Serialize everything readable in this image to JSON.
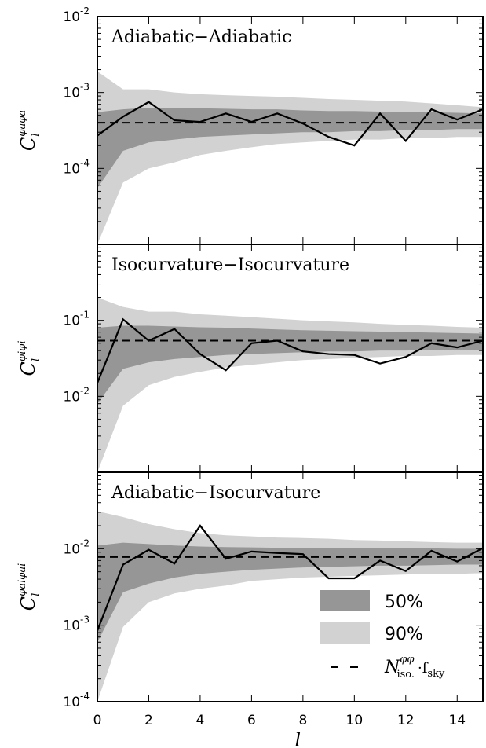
{
  "chart_data": [
    {
      "type": "line",
      "title": "Adiabatic−Adiabatic",
      "ylabel": {
        "base": "C",
        "sub": "l",
        "sup": "φaφa"
      },
      "yscale": "log",
      "ylim": [
        1e-05,
        0.01
      ],
      "ytick_labels": [
        {
          "value": 0.01,
          "base": "10",
          "exp": "-2"
        },
        {
          "value": 0.001,
          "base": "10",
          "exp": "-3"
        },
        {
          "value": 0.0001,
          "base": "10",
          "exp": "-4"
        }
      ],
      "noise_level": 0.0004,
      "x": [
        0,
        1,
        2,
        3,
        4,
        5,
        6,
        7,
        8,
        9,
        10,
        11,
        12,
        13,
        14,
        15
      ],
      "band90": {
        "lower": [
          1e-05,
          6.5e-05,
          0.0001,
          0.00012,
          0.00015,
          0.00017,
          0.00019,
          0.00021,
          0.00022,
          0.00023,
          0.00024,
          0.00024,
          0.00025,
          0.00025,
          0.00026,
          0.00026
        ],
        "upper": [
          0.0019,
          0.0011,
          0.0011,
          0.001,
          0.00095,
          0.00092,
          0.0009,
          0.00088,
          0.00085,
          0.00082,
          0.0008,
          0.00078,
          0.00076,
          0.00072,
          0.00068,
          0.00064
        ]
      },
      "band50": {
        "lower": [
          5.5e-05,
          0.00017,
          0.00022,
          0.00024,
          0.00026,
          0.00027,
          0.00028,
          0.00029,
          0.0003,
          0.0003,
          0.00031,
          0.00031,
          0.00032,
          0.00032,
          0.00033,
          0.00033
        ],
        "upper": [
          0.00055,
          0.0006,
          0.00063,
          0.00063,
          0.00062,
          0.00061,
          0.0006,
          0.0006,
          0.00058,
          0.00057,
          0.00057,
          0.00056,
          0.00055,
          0.00055,
          0.00054,
          0.00053
        ]
      },
      "values": [
        0.00027,
        0.00048,
        0.00075,
        0.00043,
        0.00041,
        0.00053,
        0.00041,
        0.00053,
        0.00039,
        0.00026,
        0.0002,
        0.00053,
        0.00023,
        0.0006,
        0.00044,
        0.0006
      ]
    },
    {
      "type": "line",
      "title": "Isocurvature−Isocurvature",
      "ylabel": {
        "base": "C",
        "sub": "l",
        "sup": "φiφi"
      },
      "yscale": "log",
      "ylim": [
        0.001,
        1
      ],
      "ytick_labels": [
        {
          "value": 0.1,
          "base": "10",
          "exp": "-1"
        },
        {
          "value": 0.01,
          "base": "10",
          "exp": "-2"
        }
      ],
      "noise_level": 0.054,
      "x": [
        0,
        1,
        2,
        3,
        4,
        5,
        6,
        7,
        8,
        9,
        10,
        11,
        12,
        13,
        14,
        15
      ],
      "band90": {
        "lower": [
          0.001,
          0.0075,
          0.014,
          0.018,
          0.021,
          0.024,
          0.026,
          0.028,
          0.03,
          0.031,
          0.032,
          0.033,
          0.034,
          0.034,
          0.035,
          0.035
        ],
        "upper": [
          0.2,
          0.15,
          0.13,
          0.13,
          0.12,
          0.115,
          0.11,
          0.105,
          0.1,
          0.097,
          0.094,
          0.09,
          0.087,
          0.085,
          0.082,
          0.08
        ]
      },
      "band50": {
        "lower": [
          0.008,
          0.023,
          0.028,
          0.031,
          0.033,
          0.035,
          0.036,
          0.037,
          0.038,
          0.039,
          0.039,
          0.04,
          0.04,
          0.041,
          0.041,
          0.041
        ],
        "upper": [
          0.08,
          0.085,
          0.085,
          0.083,
          0.081,
          0.08,
          0.078,
          0.076,
          0.074,
          0.073,
          0.072,
          0.071,
          0.07,
          0.069,
          0.068,
          0.067
        ]
      },
      "values": [
        0.015,
        0.103,
        0.054,
        0.077,
        0.036,
        0.022,
        0.05,
        0.054,
        0.039,
        0.036,
        0.035,
        0.027,
        0.033,
        0.05,
        0.044,
        0.054
      ]
    },
    {
      "type": "line",
      "title": "Adiabatic−Isocurvature",
      "ylabel": {
        "base": "C",
        "sub": "l",
        "sup": "φaiφai"
      },
      "yscale": "log",
      "ylim": [
        0.0001,
        0.1
      ],
      "ytick_labels": [
        {
          "value": 0.01,
          "base": "10",
          "exp": "-2"
        },
        {
          "value": 0.001,
          "base": "10",
          "exp": "-3"
        },
        {
          "value": 0.0001,
          "base": "10",
          "exp": "-4"
        }
      ],
      "noise_level": 0.0078,
      "x": [
        0,
        1,
        2,
        3,
        4,
        5,
        6,
        7,
        8,
        9,
        10,
        11,
        12,
        13,
        14,
        15
      ],
      "band90": {
        "lower": [
          0.0001,
          0.00095,
          0.002,
          0.0026,
          0.003,
          0.0033,
          0.0038,
          0.004,
          0.0042,
          0.0043,
          0.0044,
          0.0045,
          0.0046,
          0.0047,
          0.0047,
          0.0048
        ],
        "upper": [
          0.031,
          0.026,
          0.021,
          0.018,
          0.016,
          0.015,
          0.0145,
          0.014,
          0.0138,
          0.0135,
          0.013,
          0.0128,
          0.0125,
          0.0122,
          0.012,
          0.012
        ]
      },
      "band50": {
        "lower": [
          0.0006,
          0.0027,
          0.0035,
          0.0042,
          0.0047,
          0.005,
          0.0053,
          0.0055,
          0.0057,
          0.0058,
          0.0059,
          0.006,
          0.006,
          0.0061,
          0.0062,
          0.0062
        ],
        "upper": [
          0.011,
          0.012,
          0.0115,
          0.011,
          0.0107,
          0.0105,
          0.0104,
          0.0103,
          0.0102,
          0.0102,
          0.0101,
          0.0101,
          0.0101,
          0.0101,
          0.01,
          0.01
        ]
      },
      "values": [
        0.00085,
        0.0062,
        0.0097,
        0.0064,
        0.02,
        0.0074,
        0.0092,
        0.0088,
        0.0085,
        0.0041,
        0.0041,
        0.007,
        0.0051,
        0.0094,
        0.0068,
        0.0102
      ]
    }
  ],
  "xaxis": {
    "label": "l",
    "xlim": [
      0,
      15
    ],
    "tick_values": [
      0,
      2,
      4,
      6,
      8,
      10,
      12,
      14
    ],
    "tick_labels": [
      "0",
      "2",
      "4",
      "6",
      "8",
      "10",
      "12",
      "14"
    ]
  },
  "legend": {
    "location": "lower-right",
    "band50_label": "50%",
    "band90_label": "90%",
    "noise": {
      "base": "N",
      "sup": "φφ",
      "sub": "iso.",
      "times": "·f",
      "fsub": "sky"
    }
  },
  "colors": {
    "band50": "#969696",
    "band90": "#d2d2d2",
    "line": "#000000",
    "noise": "#000000"
  }
}
